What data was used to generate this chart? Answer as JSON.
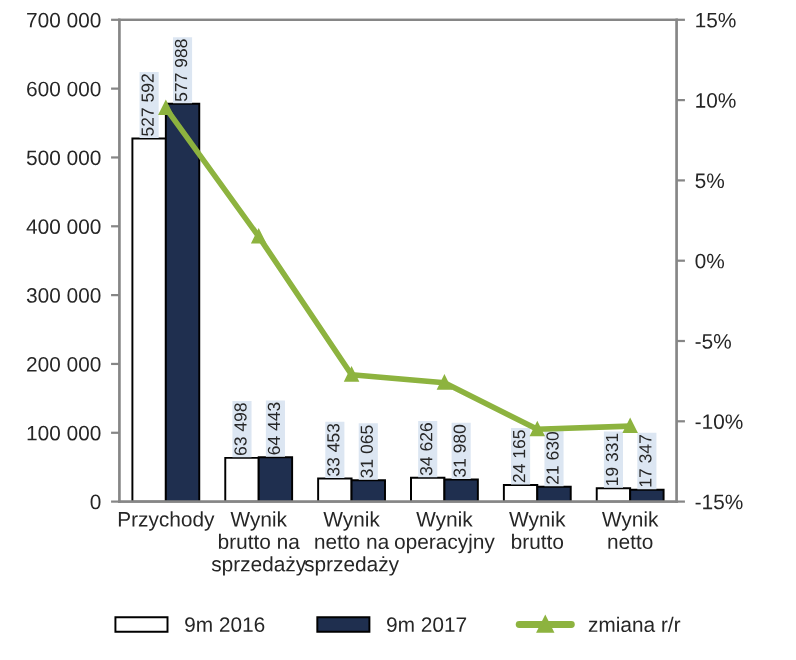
{
  "chart_data": {
    "type": "bar",
    "categories": [
      "Przychody",
      "Wynik\nbrutto na\nsprzedaży",
      "Wynik\nnetto na\nsprzedaży",
      "Wynik\noperacyjny",
      "Wynik\nbrutto",
      "Wynik\nnetto"
    ],
    "series": [
      {
        "name": "9m 2016",
        "color": "#ffffff",
        "values": [
          527592,
          63498,
          33453,
          34626,
          24165,
          19331
        ],
        "value_labels": [
          "527 592",
          "63 498",
          "33 453",
          "34 626",
          "24 165",
          "19 331"
        ]
      },
      {
        "name": "9m 2017",
        "color": "#1f2f4f",
        "values": [
          577988,
          64443,
          31065,
          31980,
          21630,
          17347
        ],
        "value_labels": [
          "577 988",
          "64 443",
          "31 065",
          "31 980",
          "21 630",
          "17 347"
        ]
      },
      {
        "name": "zmiana r/r",
        "type": "line",
        "axis": "y2",
        "color": "#8db33f",
        "marker": "triangle",
        "values": [
          9.5,
          1.5,
          -7.1,
          -7.6,
          -10.5,
          -10.3
        ]
      }
    ],
    "ylim": [
      0,
      700000
    ],
    "yticks": [
      {
        "value": 0,
        "label": "0"
      },
      {
        "value": 100000,
        "label": "100 000"
      },
      {
        "value": 200000,
        "label": "200 000"
      },
      {
        "value": 300000,
        "label": "300 000"
      },
      {
        "value": 400000,
        "label": "400 000"
      },
      {
        "value": 500000,
        "label": "500 000"
      },
      {
        "value": 600000,
        "label": "600 000"
      },
      {
        "value": 700000,
        "label": "700 000"
      }
    ],
    "y2lim": [
      -15,
      15
    ],
    "y2ticks": [
      {
        "value": -15,
        "label": "-15%"
      },
      {
        "value": -10,
        "label": "-10%"
      },
      {
        "value": -5,
        "label": "-5%"
      },
      {
        "value": 0,
        "label": "0%"
      },
      {
        "value": 5,
        "label": "5%"
      },
      {
        "value": 10,
        "label": "10%"
      },
      {
        "value": 15,
        "label": "15%"
      }
    ],
    "legend": "bottom",
    "grid": false
  }
}
